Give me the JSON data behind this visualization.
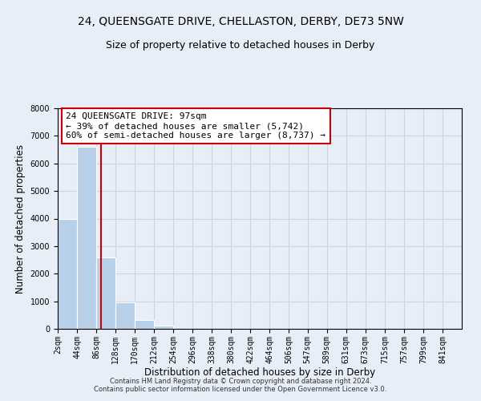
{
  "title": "24, QUEENSGATE DRIVE, CHELLASTON, DERBY, DE73 5NW",
  "subtitle": "Size of property relative to detached houses in Derby",
  "xlabel": "Distribution of detached houses by size in Derby",
  "ylabel": "Number of detached properties",
  "bin_edges": [
    2,
    44,
    86,
    128,
    170,
    212,
    254,
    296,
    338,
    380,
    422,
    464,
    506,
    547,
    589,
    631,
    673,
    715,
    757,
    799,
    841
  ],
  "bar_heights": [
    4000,
    6600,
    2600,
    950,
    320,
    130,
    0,
    0,
    0,
    0,
    0,
    0,
    0,
    0,
    0,
    0,
    0,
    0,
    0,
    0
  ],
  "bar_color": "#b8d0e8",
  "bar_edgecolor": "#ffffff",
  "property_size": 97,
  "vline_color": "#cc0000",
  "annotation_text": "24 QUEENSGATE DRIVE: 97sqm\n← 39% of detached houses are smaller (5,742)\n60% of semi-detached houses are larger (8,737) →",
  "annotation_box_edgecolor": "#cc0000",
  "annotation_box_facecolor": "#ffffff",
  "ylim": [
    0,
    8000
  ],
  "yticks": [
    0,
    1000,
    2000,
    3000,
    4000,
    5000,
    6000,
    7000,
    8000
  ],
  "grid_color": "#c8d4e8",
  "background_color": "#e8eef8",
  "footer_text": "Contains HM Land Registry data © Crown copyright and database right 2024.\nContains public sector information licensed under the Open Government Licence v3.0.",
  "title_fontsize": 10,
  "subtitle_fontsize": 9,
  "axis_label_fontsize": 8.5,
  "tick_fontsize": 7,
  "annotation_fontsize": 8,
  "footer_fontsize": 6
}
